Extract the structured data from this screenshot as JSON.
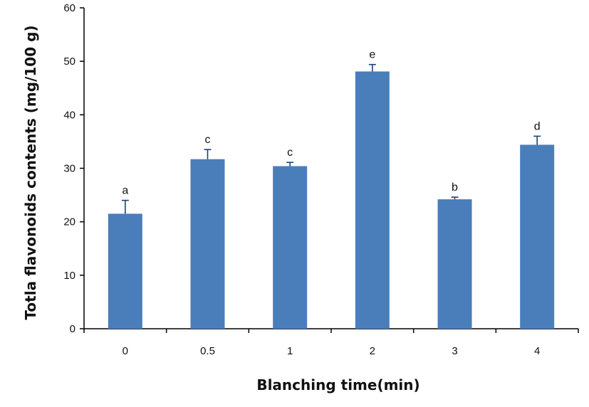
{
  "chart_data": {
    "type": "bar",
    "xlabel": "Blanching time(min)",
    "ylabel": "Totla flavonoids contents (mg/100 g)",
    "categories": [
      "0",
      "0.5",
      "1",
      "2",
      "3",
      "4"
    ],
    "values": [
      21.5,
      31.7,
      30.4,
      48.1,
      24.2,
      34.4
    ],
    "errors": [
      2.5,
      1.8,
      0.7,
      1.3,
      0.4,
      1.6
    ],
    "significance_labels": [
      "a",
      "c",
      "c",
      "e",
      "b",
      "d"
    ],
    "ylim": [
      0,
      60
    ],
    "yticks": [
      0,
      10,
      20,
      30,
      40,
      50,
      60
    ],
    "grid": false,
    "legend": "none",
    "bar_color": "#4a7ebb",
    "error_bar_color": "#1f3f73"
  }
}
